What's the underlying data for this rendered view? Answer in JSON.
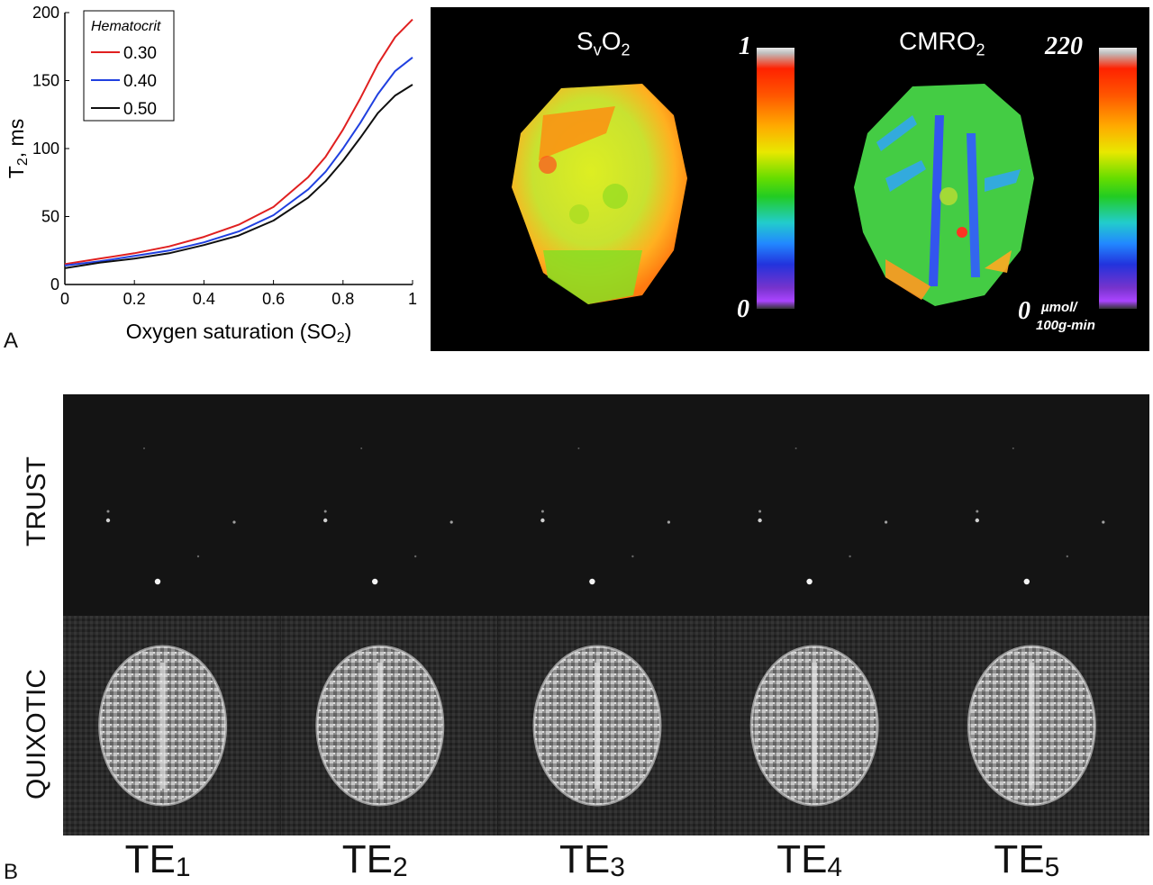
{
  "panel_a": {
    "letter": "A"
  },
  "panel_b": {
    "letter": "B"
  },
  "chart_data": {
    "type": "line",
    "xlabel_prefix": "Oxygen saturation (SO",
    "xlabel_sub": "2",
    "xlabel_suffix": ")",
    "ylabel_main": "T",
    "ylabel_sub": "2",
    "ylabel_suffix": ", ms",
    "xlim": [
      0,
      1
    ],
    "ylim": [
      0,
      200
    ],
    "x_ticks": [
      "0",
      "0.2",
      "0.4",
      "0.6",
      "0.8",
      "1"
    ],
    "y_ticks": [
      "0",
      "50",
      "100",
      "150",
      "200"
    ],
    "legend_title": "Hematocrit",
    "legend_position": "top-left",
    "x": [
      0,
      0.1,
      0.2,
      0.3,
      0.4,
      0.5,
      0.6,
      0.7,
      0.75,
      0.8,
      0.85,
      0.9,
      0.95,
      1.0
    ],
    "series": [
      {
        "name": "0.30",
        "color": "#e02020",
        "values": [
          15,
          19,
          23,
          28,
          35,
          44,
          57,
          79,
          94,
          114,
          137,
          162,
          182,
          195
        ]
      },
      {
        "name": "0.40",
        "color": "#2040e0",
        "values": [
          14,
          17,
          21,
          25,
          31,
          39,
          51,
          70,
          83,
          100,
          119,
          140,
          157,
          167
        ]
      },
      {
        "name": "0.50",
        "color": "#101010",
        "values": [
          12,
          16,
          19,
          23,
          29,
          36,
          47,
          64,
          76,
          91,
          108,
          126,
          139,
          147
        ]
      }
    ]
  },
  "maps": {
    "svo2_title_main": "S",
    "svo2_title_sub1": "v",
    "svo2_title_mid": "O",
    "svo2_title_sub2": "2",
    "svo2_max": "1",
    "svo2_min": "0",
    "cmro2_title_main": "CMRO",
    "cmro2_title_sub": "2",
    "cmro2_max": "220",
    "cmro2_min": "0",
    "cmro2_unit_top": "µmol/",
    "cmro2_unit_bottom": "100g-min"
  },
  "rows": {
    "trust": "TRUST",
    "quixotic": "QUIXOTIC"
  },
  "echo_times": [
    {
      "main": "TE",
      "sub": "1"
    },
    {
      "main": "TE",
      "sub": "2"
    },
    {
      "main": "TE",
      "sub": "3"
    },
    {
      "main": "TE",
      "sub": "4"
    },
    {
      "main": "TE",
      "sub": "5"
    }
  ]
}
